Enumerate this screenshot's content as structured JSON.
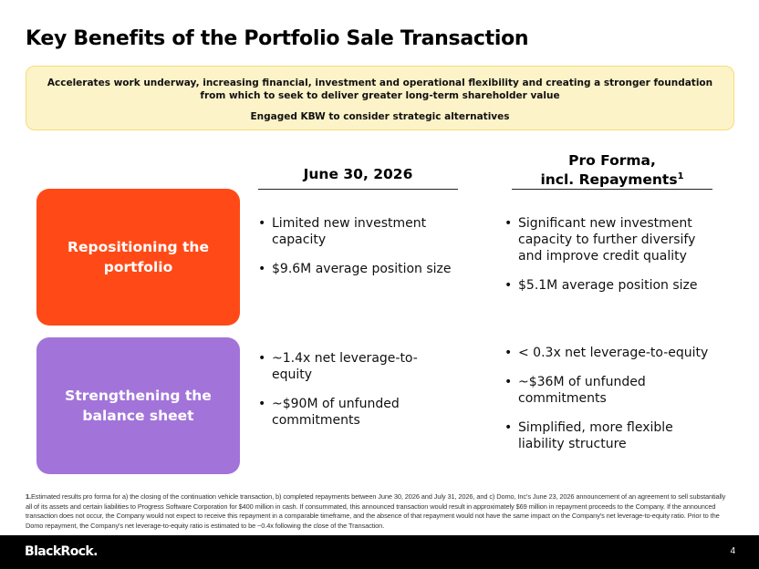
{
  "title": "Key Benefits of the Portfolio Sale Transaction",
  "banner": {
    "line1": "Accelerates work underway, increasing financial, investment and operational flexibility and creating a stronger foundation from which to seek to deliver greater long-term shareholder value",
    "line2": "Engaged KBW to consider strategic alternatives"
  },
  "columns": {
    "left_header": "June 30, 2026",
    "right_header_line1": "Pro Forma,",
    "right_header_line2": "incl. Repayments",
    "right_header_sup": "1"
  },
  "rows": [
    {
      "label": "Repositioning the portfolio",
      "left": [
        "Limited new investment capacity",
        "$9.6M average position size"
      ],
      "right": [
        "Significant new investment capacity to further diversify and improve credit quality",
        "$5.1M average position size"
      ]
    },
    {
      "label": "Strengthening the balance sheet",
      "left": [
        "~1.4x net leverage-to-equity",
        "~$90M of unfunded commitments"
      ],
      "right": [
        "< 0.3x net leverage-to-equity",
        "~$36M of unfunded commitments",
        "Simplified, more flexible liability structure"
      ]
    }
  ],
  "footnote": {
    "number": "1.",
    "text": "Estimated results pro forma for a) the closing of the continuation vehicle transaction, b) completed repayments between June 30, 2026 and July 31, 2026, and c) Domo, Inc's June 23, 2026 announcement of an agreement to sell substantially all of its assets and certain liabilities to Progress Software Corporation for $400 million in cash. If consummated, this announced transaction would result in approximately $69 million in repayment proceeds to the Company. If the announced transaction does not occur, the Company would not expect to receive this repayment in a comparable timeframe, and the absence of that repayment would not have the same impact on the Company's net leverage-to-equity ratio. Prior to the Domo repayment, the Company's net leverage-to-equity ratio is estimated to be ~0.4x following the close of the Transaction."
  },
  "footer": {
    "logo": "BlackRock.",
    "page_number": "4"
  },
  "colors": {
    "orange": "#ff4a17",
    "purple": "#a274d9",
    "banner_bg": "#fdf3c8",
    "banner_border": "#f5dc78",
    "footer_bg": "#000000"
  }
}
